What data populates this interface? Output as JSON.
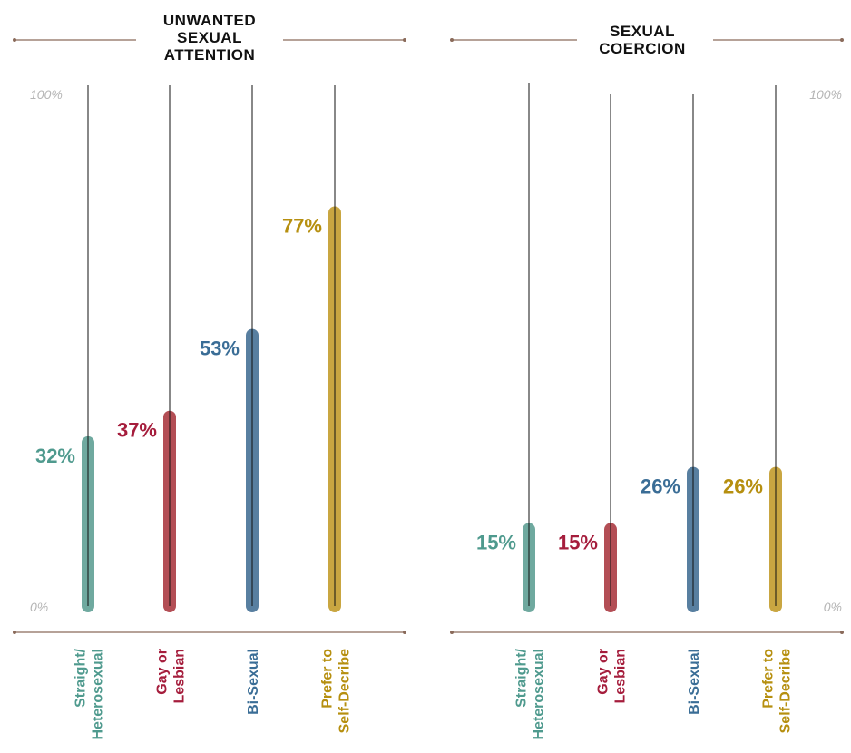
{
  "chart_data": [
    {
      "type": "bar",
      "title": [
        "UNWANTED",
        "SEXUAL",
        "ATTENTION"
      ],
      "categories": [
        [
          "Straight/",
          "Heterosexual"
        ],
        [
          "Gay or",
          "Lesbian"
        ],
        [
          "Bi-Sexual"
        ],
        [
          "Prefer to",
          "Self-Decribe"
        ]
      ],
      "values": [
        32,
        37,
        53,
        77
      ],
      "value_labels": [
        "32%",
        "37%",
        "53%",
        "77%"
      ],
      "colors": [
        "#6fa99f",
        "#b34e55",
        "#587fa0",
        "#c9a641"
      ],
      "label_colors": [
        "#4f9a8e",
        "#a51d3c",
        "#3a6d96",
        "#b68f0f"
      ],
      "ylim": [
        0,
        100
      ],
      "yticks": [
        "0%",
        "100%"
      ],
      "ytick_side": "left"
    },
    {
      "type": "bar",
      "title": [
        "SEXUAL",
        "COERCION"
      ],
      "categories": [
        [
          "Straight/",
          "Heterosexual"
        ],
        [
          "Gay or",
          "Lesbian"
        ],
        [
          "Bi-Sexual"
        ],
        [
          "Prefer to",
          "Self-Decribe"
        ]
      ],
      "values": [
        15,
        15,
        26,
        26
      ],
      "value_labels": [
        "15%",
        "15%",
        "26%",
        "26%"
      ],
      "colors": [
        "#6fa99f",
        "#b34e55",
        "#587fa0",
        "#c9a641"
      ],
      "label_colors": [
        "#4f9a8e",
        "#a51d3c",
        "#3a6d96",
        "#b68f0f"
      ],
      "ylim": [
        0,
        100
      ],
      "yticks": [
        "0%",
        "100%"
      ],
      "ytick_side": "right"
    }
  ]
}
